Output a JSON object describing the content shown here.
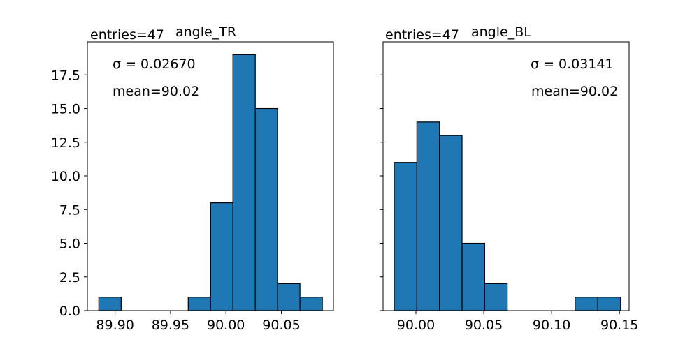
{
  "chart_data": [
    {
      "type": "bar",
      "title": "angle_TR",
      "entries_label": "entries=47",
      "sigma_label": "σ = 0.02670",
      "mean_label": "mean=90.02",
      "xlim": [
        89.875,
        90.097
      ],
      "ylim": [
        0,
        19.95
      ],
      "xticks": [
        89.9,
        89.95,
        90.0,
        90.05
      ],
      "xtick_labels": [
        "89.90",
        "89.95",
        "90.00",
        "90.05"
      ],
      "yticks": [
        0,
        2.5,
        5,
        7.5,
        10,
        12.5,
        15,
        17.5
      ],
      "ytick_labels": [
        "0.0",
        "2.5",
        "5.0",
        "7.5",
        "10.0",
        "12.5",
        "15.0",
        "17.5"
      ],
      "bin_edges": [
        89.8853,
        89.9055,
        89.9257,
        89.9458,
        89.966,
        89.9862,
        90.0063,
        90.0265,
        90.0466,
        90.0668,
        90.087
      ],
      "values": [
        1,
        0,
        0,
        0,
        1,
        8,
        19,
        15,
        2,
        1
      ],
      "bar_color": "#1f77b4",
      "edge_color": "#000000"
    },
    {
      "type": "bar",
      "title": "angle_BL",
      "entries_label": "entries=47",
      "sigma_label": "σ = 0.03141",
      "mean_label": "mean=90.02",
      "xlim": [
        89.9758,
        90.1571
      ],
      "ylim": [
        0,
        19.95
      ],
      "xticks": [
        90.0,
        90.05,
        90.1,
        90.15
      ],
      "xtick_labels": [
        "90.00",
        "90.05",
        "90.10",
        "90.15"
      ],
      "yticks": [
        0,
        2.5,
        5,
        7.5,
        10,
        12.5,
        15,
        17.5
      ],
      "ytick_labels": [],
      "bin_edges": [
        89.984,
        90.0007,
        90.0174,
        90.034,
        90.0507,
        90.0673,
        90.084,
        90.1007,
        90.1173,
        90.134,
        90.1507
      ],
      "values": [
        11,
        14,
        13,
        5,
        2,
        0,
        0,
        0,
        1,
        1
      ],
      "bar_color": "#1f77b4",
      "edge_color": "#000000"
    }
  ]
}
